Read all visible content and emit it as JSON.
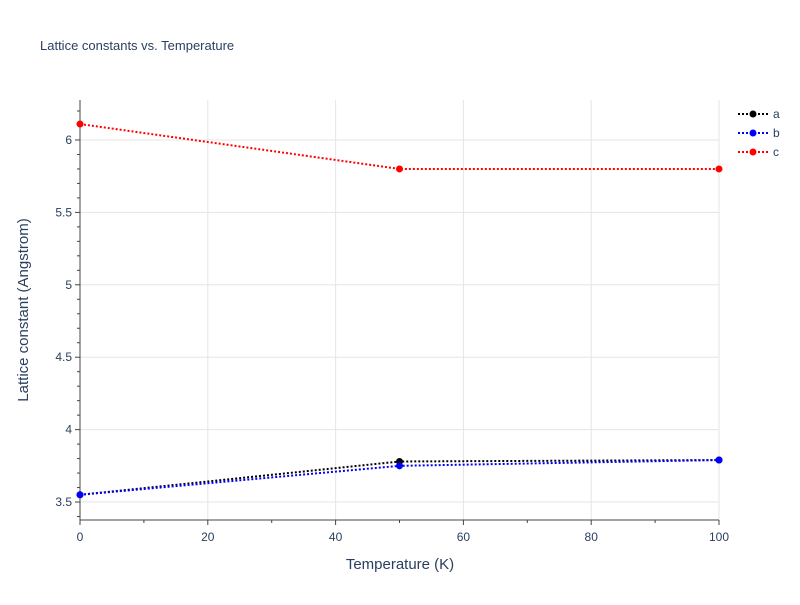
{
  "chart_data": {
    "type": "line",
    "title": "Lattice constants vs. Temperature",
    "xlabel": "Temperature (K)",
    "ylabel": "Lattice constant (Angstrom)",
    "xlim": [
      0,
      100
    ],
    "ylim": [
      3.376,
      6.276
    ],
    "xticks": [
      0,
      20,
      40,
      60,
      80,
      100
    ],
    "yticks": [
      3.5,
      4,
      4.5,
      5,
      5.5,
      6
    ],
    "xtick_labels": [
      "0",
      "20",
      "40",
      "60",
      "80",
      "100"
    ],
    "ytick_labels": [
      "3.5",
      "4",
      "4.5",
      "5",
      "5.5",
      "6"
    ],
    "grid": true,
    "legend_placement": "top-right",
    "line_style": "dotted",
    "x": [
      0,
      50,
      100
    ],
    "series": [
      {
        "name": "a",
        "color": "#000000",
        "values": [
          3.55,
          3.78,
          3.79
        ]
      },
      {
        "name": "b",
        "color": "#0000ff",
        "values": [
          3.55,
          3.75,
          3.79
        ]
      },
      {
        "name": "c",
        "color": "#ff0000",
        "values": [
          6.11,
          5.8,
          5.8
        ]
      }
    ]
  }
}
